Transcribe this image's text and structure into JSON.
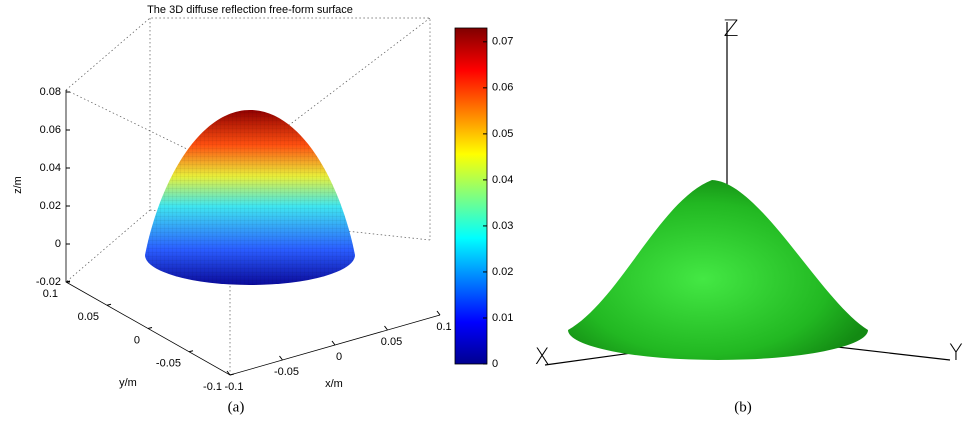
{
  "panel_a": {
    "title": "The 3D diffuse reflection free-form surface",
    "zlabel": "z/m",
    "ylabel": "y/m",
    "xlabel": "x/m",
    "zlim": [
      -0.02,
      0.08
    ],
    "zticks": [
      -0.02,
      0,
      0.02,
      0.04,
      0.06,
      0.08
    ],
    "ylim": [
      0.1,
      -0.1
    ],
    "yticks": [
      0.1,
      0.05,
      0,
      -0.05,
      -0.1
    ],
    "xlim": [
      -0.1,
      0.1
    ],
    "xticks": [
      -0.1,
      -0.05,
      0,
      0.05,
      0.1
    ],
    "colorbar": {
      "lim": [
        0,
        0.073
      ],
      "ticks": [
        0,
        0.01,
        0.02,
        0.03,
        0.04,
        0.05,
        0.06,
        0.07
      ]
    },
    "caption": "(a)"
  },
  "panel_b": {
    "axis_x": "X",
    "axis_y": "Y",
    "axis_z": "Z",
    "caption": "(b)"
  }
}
